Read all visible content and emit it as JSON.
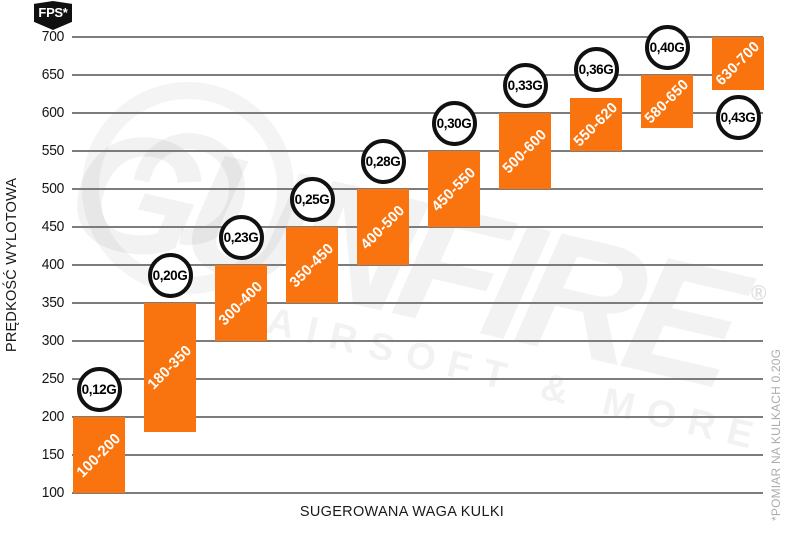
{
  "badge": {
    "label": "FPS*"
  },
  "watermark": {
    "brand": "GUNFIRE",
    "tagline": "AIRSOFT & MORE",
    "registered": "®"
  },
  "colors": {
    "bar_orange": "#F9740E",
    "grid_gray": "#7C7C7C",
    "circle_border": "#111111",
    "footnote_gray": "#ADADAD",
    "badge_black": "#101010"
  },
  "chart_data": {
    "type": "bar",
    "title": "",
    "xlabel": "SUGEROWANA WAGA KULKI",
    "ylabel": "PRĘDKOŚĆ WYLOTOWA",
    "unit": "FPS",
    "footnote": "*POMIAR NA KULKACH 0.20G",
    "ylim": [
      100,
      700
    ],
    "ytick_step": 50,
    "yticks": [
      700,
      650,
      600,
      550,
      500,
      450,
      400,
      350,
      300,
      250,
      200,
      150,
      100
    ],
    "grid": true,
    "legend": false,
    "categories": [
      "0,12G",
      "0,20G",
      "0,23G",
      "0,25G",
      "0,28G",
      "0,30G",
      "0,33G",
      "0,36G",
      "0,40G",
      "0,43G"
    ],
    "bars": [
      {
        "weight": "0,12G",
        "fps_min": 100,
        "fps_max": 200,
        "label": "100-200",
        "badge_position": "above"
      },
      {
        "weight": "0,20G",
        "fps_min": 180,
        "fps_max": 350,
        "label": "180-350",
        "badge_position": "above"
      },
      {
        "weight": "0,23G",
        "fps_min": 300,
        "fps_max": 400,
        "label": "300-400",
        "badge_position": "above"
      },
      {
        "weight": "0,25G",
        "fps_min": 350,
        "fps_max": 450,
        "label": "350-450",
        "badge_position": "above"
      },
      {
        "weight": "0,28G",
        "fps_min": 400,
        "fps_max": 500,
        "label": "400-500",
        "badge_position": "above"
      },
      {
        "weight": "0,30G",
        "fps_min": 450,
        "fps_max": 550,
        "label": "450-550",
        "badge_position": "above"
      },
      {
        "weight": "0,33G",
        "fps_min": 500,
        "fps_max": 600,
        "label": "500-600",
        "badge_position": "above"
      },
      {
        "weight": "0,36G",
        "fps_min": 550,
        "fps_max": 620,
        "label": "550-620",
        "badge_position": "above"
      },
      {
        "weight": "0,40G",
        "fps_min": 580,
        "fps_max": 650,
        "label": "580-650",
        "badge_position": "above"
      },
      {
        "weight": "0,43G",
        "fps_min": 630,
        "fps_max": 700,
        "label": "630-700",
        "badge_position": "below"
      }
    ]
  }
}
